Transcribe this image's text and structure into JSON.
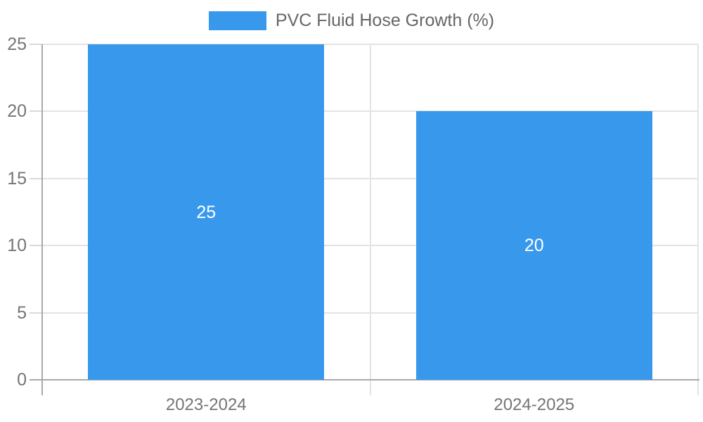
{
  "legend": {
    "label": "PVC Fluid Hose Growth (%)"
  },
  "chart_data": {
    "type": "bar",
    "title": "PVC Fluid Hose Growth (%)",
    "categories": [
      "2023-2024",
      "2024-2025"
    ],
    "series": [
      {
        "name": "PVC Fluid Hose Growth (%)",
        "values": [
          25,
          20
        ]
      }
    ],
    "data_labels": [
      "25",
      "20"
    ],
    "xlabel": "",
    "ylabel": "",
    "ylim": [
      0,
      25
    ],
    "yticks": [
      0,
      5,
      10,
      15,
      20,
      25
    ],
    "grid": true,
    "legend_position": "top-center",
    "colors": {
      "bar": "#3899EC",
      "grid": "#e3e3e3",
      "axis": "#a9a9a9",
      "tick": "#d9d9d9",
      "axis_label": "#757575",
      "legend_text": "#666666",
      "bar_label": "#ffffff"
    }
  }
}
